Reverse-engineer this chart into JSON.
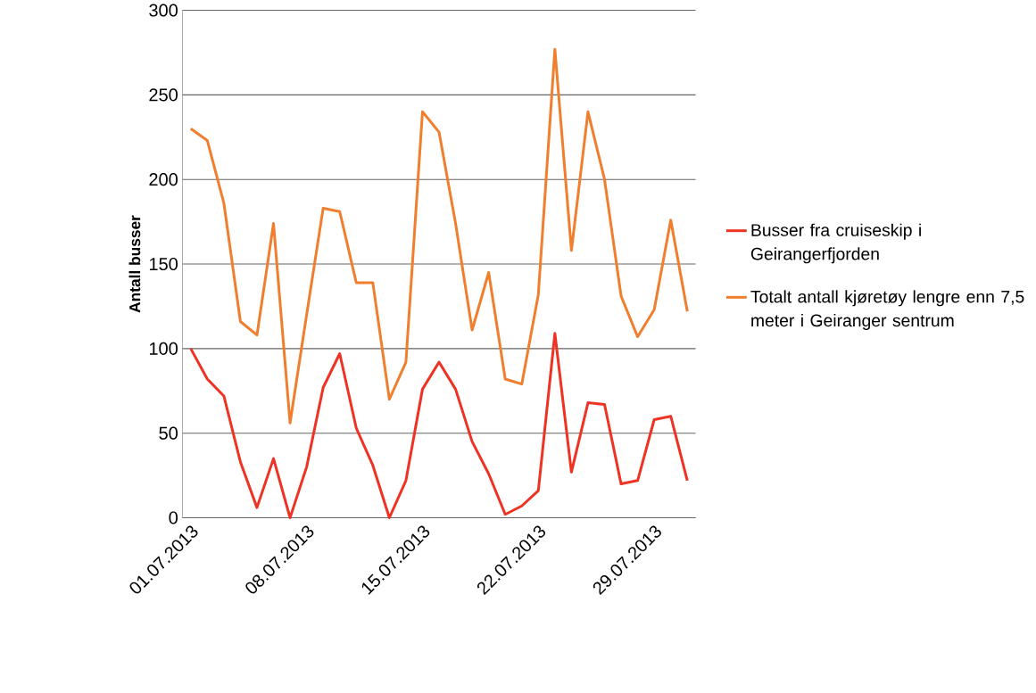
{
  "chart_data": {
    "type": "line",
    "ylabel": "Antall busser",
    "categories": [
      "01.07.2013",
      null,
      null,
      null,
      null,
      null,
      null,
      "08.07.2013",
      null,
      null,
      null,
      null,
      null,
      null,
      "15.07.2013",
      null,
      null,
      null,
      null,
      null,
      null,
      "22.07.2013",
      null,
      null,
      null,
      null,
      null,
      null,
      "29.07.2013",
      null,
      null
    ],
    "series": [
      {
        "name": "Busser fra cruiseskip i Geirangerfjorden",
        "color": "#ee3224",
        "values": [
          100,
          82,
          72,
          33,
          6,
          35,
          0,
          30,
          77,
          97,
          53,
          31,
          0,
          22,
          76,
          92,
          76,
          45,
          26,
          2,
          7,
          16,
          109,
          27,
          68,
          67,
          20,
          22,
          58,
          60,
          22
        ]
      },
      {
        "name": "Totalt antall kjøretøy lengre enn 7,5 meter i Geiranger sentrum",
        "color": "#ef7f2e",
        "values": [
          230,
          223,
          186,
          116,
          108,
          174,
          56,
          120,
          183,
          181,
          139,
          139,
          70,
          92,
          240,
          228,
          174,
          111,
          145,
          82,
          79,
          132,
          277,
          158,
          240,
          200,
          131,
          107,
          123,
          176,
          122
        ]
      }
    ],
    "ylim": [
      0,
      300
    ],
    "yticks": [
      0,
      50,
      100,
      150,
      200,
      250,
      300
    ],
    "grid": "y",
    "legend": "right",
    "marker": "none",
    "line_style": "solid"
  }
}
